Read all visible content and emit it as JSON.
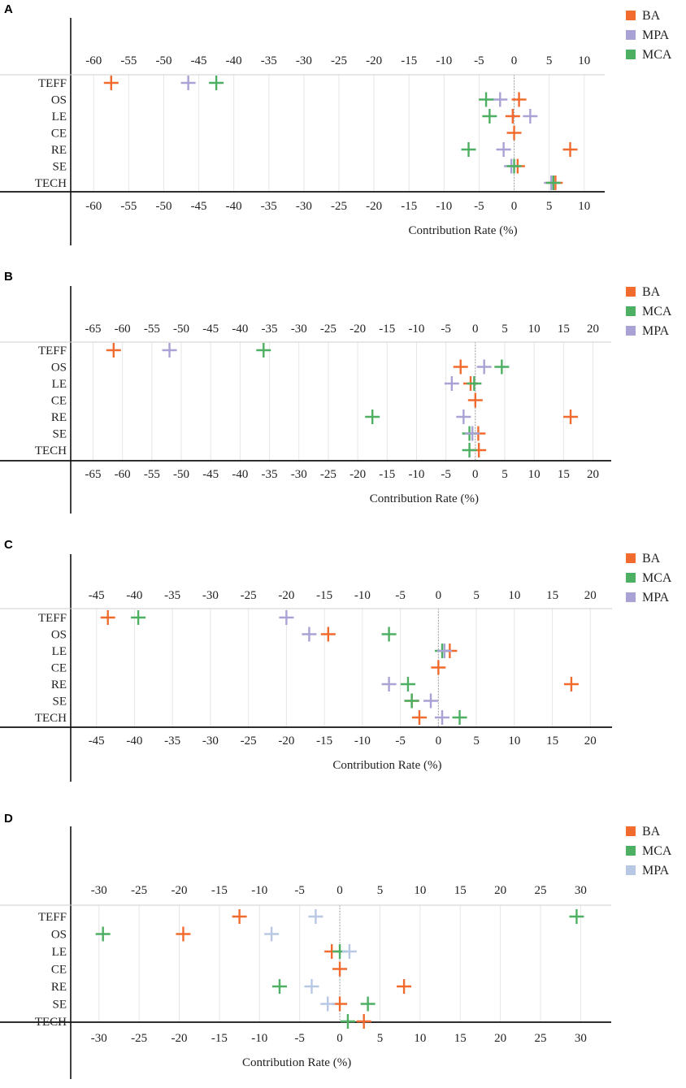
{
  "chart_data": [
    {
      "panel": "A",
      "type": "scatter",
      "xlabel": "Contribution Rate (%)",
      "xlim": [
        -62,
        12
      ],
      "ticks": [
        -60,
        -55,
        -50,
        -45,
        -40,
        -35,
        -30,
        -25,
        -20,
        -15,
        -10,
        -5,
        0,
        5,
        10
      ],
      "categories": [
        "TEFF",
        "OS",
        "LE",
        "CE",
        "RE",
        "SE",
        "TECH"
      ],
      "legend": [
        "BA",
        "MPA",
        "MCA"
      ],
      "series": [
        {
          "name": "BA",
          "color": "#f26b2e",
          "values": [
            -57.5,
            0.7,
            -0.2,
            0.0,
            8.0,
            0.5,
            5.9
          ]
        },
        {
          "name": "MPA",
          "color": "#a9a2d4",
          "values": [
            -46.5,
            -2.0,
            2.3,
            null,
            -1.5,
            -0.4,
            5.3
          ]
        },
        {
          "name": "MCA",
          "color": "#4caf62",
          "values": [
            -42.5,
            -4.0,
            -3.5,
            null,
            -6.5,
            0.0,
            5.6
          ]
        }
      ]
    },
    {
      "panel": "B",
      "type": "scatter",
      "xlabel": "Contribution Rate (%)",
      "xlim": [
        -67,
        22
      ],
      "ticks": [
        -65,
        -60,
        -55,
        -50,
        -45,
        -40,
        -35,
        -30,
        -25,
        -20,
        -15,
        -10,
        -5,
        0,
        5,
        10,
        15,
        20
      ],
      "categories": [
        "TEFF",
        "OS",
        "LE",
        "CE",
        "RE",
        "SE",
        "TECH"
      ],
      "legend": [
        "BA",
        "MCA",
        "MPA"
      ],
      "series": [
        {
          "name": "BA",
          "color": "#f26b2e",
          "values": [
            -61.5,
            -2.5,
            -0.8,
            0.0,
            16.2,
            0.5,
            0.6
          ]
        },
        {
          "name": "MCA",
          "color": "#4caf62",
          "values": [
            -36.0,
            4.5,
            -0.2,
            null,
            -17.5,
            -1.0,
            -1.0
          ]
        },
        {
          "name": "MPA",
          "color": "#a9a2d4",
          "values": [
            -52.0,
            1.5,
            -4.0,
            null,
            -2.0,
            -0.5,
            null
          ]
        }
      ]
    },
    {
      "panel": "C",
      "type": "scatter",
      "xlabel": "Contribution Rate (%)",
      "xlim": [
        -47,
        22
      ],
      "ticks": [
        -45,
        -40,
        -35,
        -30,
        -25,
        -20,
        -15,
        -10,
        -5,
        0,
        5,
        10,
        15,
        20
      ],
      "categories": [
        "TEFF",
        "OS",
        "LE",
        "CE",
        "RE",
        "SE",
        "TECH"
      ],
      "legend": [
        "BA",
        "MCA",
        "MPA"
      ],
      "series": [
        {
          "name": "BA",
          "color": "#f26b2e",
          "values": [
            -43.5,
            -14.5,
            1.5,
            0.0,
            17.5,
            -3.5,
            -2.5
          ]
        },
        {
          "name": "MCA",
          "color": "#4caf62",
          "values": [
            -39.5,
            -6.5,
            0.5,
            null,
            -4.0,
            -3.5,
            2.8
          ]
        },
        {
          "name": "MPA",
          "color": "#a9a2d4",
          "values": [
            -20.0,
            -17.0,
            0.8,
            null,
            -6.5,
            -1.0,
            0.5
          ]
        }
      ]
    },
    {
      "panel": "D",
      "type": "scatter",
      "xlabel": "Contribution Rate (%)",
      "xlim": [
        -32,
        33
      ],
      "ticks": [
        -30,
        -25,
        -20,
        -15,
        -10,
        -5,
        0,
        5,
        10,
        15,
        20,
        25,
        30
      ],
      "categories": [
        "TEFF",
        "OS",
        "LE",
        "CE",
        "RE",
        "SE",
        "TECH"
      ],
      "legend": [
        "BA",
        "MCA",
        "MPA"
      ],
      "series": [
        {
          "name": "BA",
          "color": "#f26b2e",
          "values": [
            -12.5,
            -19.5,
            -1.0,
            0.0,
            8.0,
            0.0,
            3.0
          ]
        },
        {
          "name": "MCA",
          "color": "#4caf62",
          "values": [
            29.5,
            -29.5,
            0.0,
            null,
            -7.5,
            3.5,
            1.0
          ]
        },
        {
          "name": "MPA",
          "color": "#b8c8e4",
          "values": [
            -3.0,
            -8.5,
            1.2,
            null,
            -3.5,
            -1.5,
            null
          ]
        }
      ]
    }
  ]
}
